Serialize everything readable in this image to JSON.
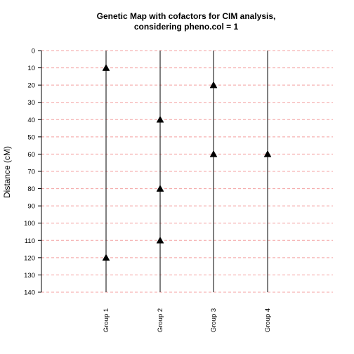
{
  "chart_data": {
    "type": "scatter",
    "title": "Genetic Map with cofactors for CIM analysis,",
    "subtitle": "considering pheno.col =  1",
    "xlabel": "",
    "ylabel": "Distance (cM)",
    "ylim": [
      0,
      140
    ],
    "y_reversed": true,
    "yticks": [
      0,
      10,
      20,
      30,
      40,
      50,
      60,
      70,
      80,
      90,
      100,
      110,
      120,
      130,
      140
    ],
    "grid": true,
    "grid_color": "#f4a0a0",
    "categories": [
      "Group 1",
      "Group 2",
      "Group 3",
      "Group 4"
    ],
    "group_ranges": [
      [
        0,
        140
      ],
      [
        0,
        140
      ],
      [
        0,
        140
      ],
      [
        0,
        140
      ]
    ],
    "cofactors": [
      {
        "group": "Group 1",
        "position": 10
      },
      {
        "group": "Group 1",
        "position": 120
      },
      {
        "group": "Group 2",
        "position": 40
      },
      {
        "group": "Group 2",
        "position": 80
      },
      {
        "group": "Group 2",
        "position": 110
      },
      {
        "group": "Group 3",
        "position": 20
      },
      {
        "group": "Group 3",
        "position": 60
      },
      {
        "group": "Group 4",
        "position": 60
      }
    ],
    "marker": "filled-triangle"
  }
}
